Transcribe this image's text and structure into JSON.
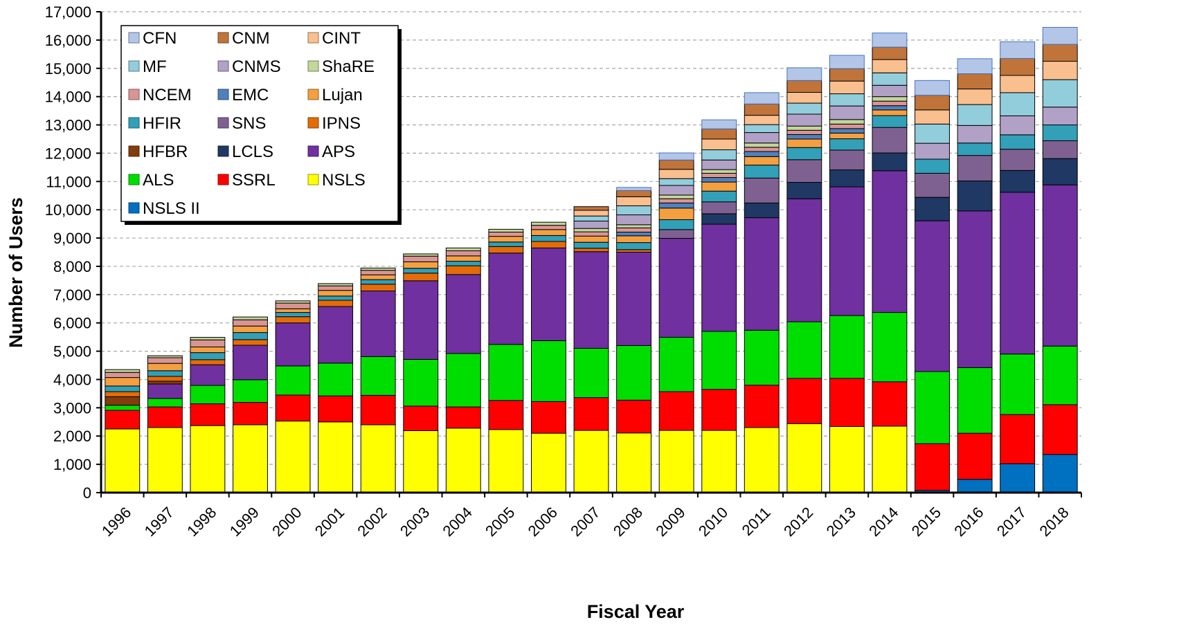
{
  "chart_data": {
    "type": "bar",
    "stacked": true,
    "title": "",
    "xlabel": "Fiscal Year",
    "ylabel": "Number of Users",
    "ylim": [
      0,
      17000
    ],
    "yticks": [
      0,
      1000,
      2000,
      3000,
      4000,
      5000,
      6000,
      7000,
      8000,
      9000,
      10000,
      11000,
      12000,
      13000,
      14000,
      15000,
      16000,
      17000
    ],
    "ytick_labels": [
      "0",
      "1,000",
      "2,000",
      "3,000",
      "4,000",
      "5,000",
      "6,000",
      "7,000",
      "8,000",
      "9,000",
      "10,000",
      "11,000",
      "12,000",
      "13,000",
      "14,000",
      "15,000",
      "16,000",
      "17,000"
    ],
    "grid": true,
    "legend_position": "top-left",
    "categories": [
      "1996",
      "1997",
      "1998",
      "1999",
      "2000",
      "2001",
      "2002",
      "2003",
      "2004",
      "2005",
      "2006",
      "2007",
      "2008",
      "2009",
      "2010",
      "2011",
      "2012",
      "2013",
      "2014",
      "2015",
      "2016",
      "2017",
      "2018"
    ],
    "legend_order": [
      "CFN",
      "CNM",
      "CINT",
      "MF",
      "CNMS",
      "ShaRE",
      "NCEM",
      "EMC",
      "Lujan",
      "HFIR",
      "SNS",
      "IPNS",
      "HFBR",
      "LCLS",
      "APS",
      "ALS",
      "SSRL",
      "NSLS",
      "NSLS II"
    ],
    "series": [
      {
        "name": "NSLS II",
        "color": "#0070C0",
        "values": [
          0,
          0,
          0,
          0,
          0,
          0,
          0,
          0,
          0,
          0,
          0,
          0,
          0,
          0,
          0,
          0,
          0,
          0,
          0,
          80,
          470,
          1020,
          1350
        ]
      },
      {
        "name": "NSLS",
        "color": "#FFFF00",
        "values": [
          2250,
          2300,
          2370,
          2400,
          2530,
          2500,
          2400,
          2190,
          2280,
          2230,
          2100,
          2200,
          2110,
          2200,
          2200,
          2300,
          2440,
          2340,
          2350,
          0,
          0,
          0,
          0
        ]
      },
      {
        "name": "SSRL",
        "color": "#FF0000",
        "values": [
          660,
          730,
          770,
          790,
          920,
          920,
          1040,
          870,
          750,
          1030,
          1120,
          1160,
          1160,
          1370,
          1450,
          1500,
          1600,
          1700,
          1570,
          1650,
          1630,
          1740,
          1760
        ]
      },
      {
        "name": "ALS",
        "color": "#00DD00",
        "values": [
          180,
          300,
          650,
          800,
          1030,
          1160,
          1370,
          1650,
          1890,
          1980,
          2150,
          1740,
          1930,
          1920,
          2050,
          1940,
          2000,
          2220,
          2450,
          2550,
          2320,
          2140,
          2070
        ]
      },
      {
        "name": "APS",
        "color": "#7030A0",
        "values": [
          0,
          510,
          730,
          1220,
          1520,
          2000,
          2320,
          2780,
          2790,
          3230,
          3280,
          3420,
          3300,
          3500,
          3790,
          3980,
          4350,
          4550,
          5010,
          5330,
          5540,
          5720,
          5700
        ]
      },
      {
        "name": "LCLS",
        "color": "#1F3864",
        "values": [
          0,
          0,
          0,
          0,
          0,
          0,
          0,
          0,
          0,
          0,
          0,
          0,
          0,
          0,
          370,
          520,
          580,
          600,
          630,
          830,
          1060,
          770,
          930
        ]
      },
      {
        "name": "HFBR",
        "color": "#843C0C",
        "values": [
          300,
          100,
          0,
          0,
          0,
          0,
          0,
          0,
          0,
          0,
          0,
          0,
          0,
          0,
          0,
          0,
          0,
          0,
          0,
          0,
          0,
          0,
          0
        ]
      },
      {
        "name": "IPNS",
        "color": "#E36C09",
        "values": [
          180,
          170,
          180,
          200,
          220,
          220,
          240,
          270,
          310,
          230,
          230,
          120,
          90,
          0,
          0,
          0,
          0,
          0,
          0,
          0,
          0,
          0,
          0
        ]
      },
      {
        "name": "SNS",
        "color": "#7F6191",
        "values": [
          0,
          0,
          0,
          0,
          0,
          0,
          0,
          0,
          0,
          0,
          0,
          0,
          0,
          310,
          420,
          880,
          800,
          700,
          900,
          850,
          900,
          750,
          630
        ]
      },
      {
        "name": "HFIR",
        "color": "#31A0B8",
        "values": [
          200,
          200,
          250,
          250,
          150,
          150,
          160,
          170,
          160,
          160,
          210,
          210,
          250,
          350,
          380,
          460,
          430,
          400,
          420,
          500,
          440,
          510,
          560
        ]
      },
      {
        "name": "Lujan",
        "color": "#F4A041",
        "values": [
          300,
          260,
          200,
          230,
          130,
          200,
          170,
          230,
          190,
          200,
          210,
          220,
          240,
          410,
          320,
          300,
          300,
          200,
          200,
          0,
          0,
          0,
          0
        ]
      },
      {
        "name": "EMC",
        "color": "#4F81BD",
        "values": [
          0,
          0,
          0,
          0,
          0,
          0,
          0,
          0,
          0,
          0,
          0,
          0,
          130,
          180,
          160,
          180,
          160,
          160,
          150,
          0,
          0,
          0,
          0
        ]
      },
      {
        "name": "NCEM",
        "color": "#D99594",
        "values": [
          180,
          200,
          250,
          220,
          200,
          160,
          160,
          200,
          180,
          150,
          150,
          150,
          150,
          150,
          150,
          150,
          150,
          160,
          160,
          0,
          0,
          0,
          0
        ]
      },
      {
        "name": "ShaRE",
        "color": "#C3D69B",
        "values": [
          100,
          70,
          90,
          100,
          80,
          80,
          80,
          80,
          100,
          100,
          110,
          120,
          110,
          130,
          130,
          150,
          150,
          160,
          160,
          0,
          0,
          0,
          0
        ]
      },
      {
        "name": "CNMS",
        "color": "#B2A1C7",
        "values": [
          0,
          0,
          0,
          0,
          0,
          0,
          0,
          0,
          0,
          0,
          0,
          260,
          350,
          340,
          340,
          370,
          420,
          480,
          400,
          560,
          620,
          670,
          630
        ]
      },
      {
        "name": "MF",
        "color": "#92CDDC",
        "values": [
          0,
          0,
          0,
          0,
          0,
          0,
          0,
          0,
          0,
          0,
          0,
          180,
          320,
          240,
          360,
          280,
          390,
          430,
          440,
          680,
          740,
          820,
          970
        ]
      },
      {
        "name": "CINT",
        "color": "#FABF8F",
        "values": [
          0,
          0,
          0,
          0,
          0,
          0,
          0,
          0,
          0,
          0,
          0,
          200,
          320,
          330,
          380,
          330,
          380,
          450,
          470,
          500,
          550,
          610,
          650
        ]
      },
      {
        "name": "CNM",
        "color": "#C0743A",
        "values": [
          0,
          0,
          0,
          0,
          0,
          0,
          0,
          0,
          0,
          0,
          0,
          130,
          220,
          330,
          360,
          400,
          420,
          440,
          440,
          520,
          540,
          600,
          600
        ]
      },
      {
        "name": "CFN",
        "color": "#B3C6E7",
        "values": [
          0,
          0,
          0,
          0,
          0,
          0,
          0,
          0,
          0,
          0,
          0,
          0,
          110,
          250,
          320,
          400,
          450,
          470,
          500,
          520,
          530,
          590,
          600
        ]
      }
    ]
  }
}
